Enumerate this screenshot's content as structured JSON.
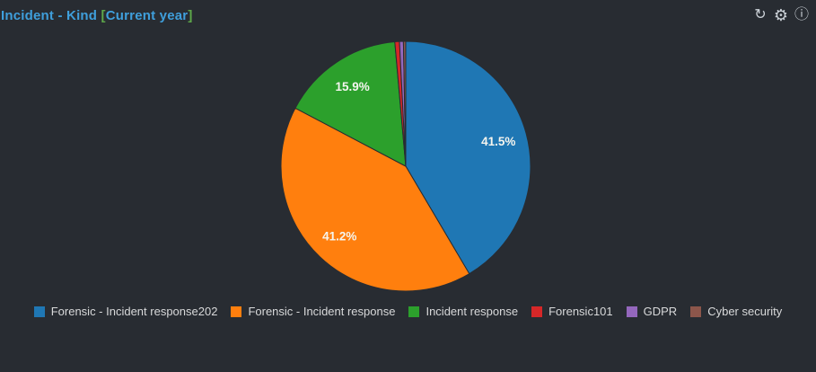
{
  "panel": {
    "title": {
      "prefix": "Incident - Kind ",
      "bracket_open": "[",
      "bracket_text": "Current year",
      "bracket_close": "]",
      "prefix_color": "#3f9fdc",
      "bracket_color": "#5ea84a"
    },
    "toolbar": {
      "refresh_glyph": "↻",
      "settings_glyph": "⚙",
      "info_glyph": "ⓘ"
    },
    "background_color": "#282c32"
  },
  "chart_data": {
    "type": "pie",
    "title": "Incident - Kind [Current year]",
    "legend_position": "bottom",
    "start_angle_deg": 0,
    "clockwise": true,
    "label_min_pct": 5,
    "label_format": "percent",
    "series": [
      {
        "name": "Forensic - Incident response202",
        "value": 41.5,
        "color": "#1f77b4",
        "label": "41.5%"
      },
      {
        "name": "Forensic - Incident response",
        "value": 41.2,
        "color": "#ff7f0e",
        "label": "41.2%"
      },
      {
        "name": "Incident response",
        "value": 15.9,
        "color": "#2ca02c",
        "label": "15.9%"
      },
      {
        "name": "Forensic101",
        "value": 0.6,
        "color": "#d62728",
        "label": ""
      },
      {
        "name": "GDPR",
        "value": 0.5,
        "color": "#9467bd",
        "label": ""
      },
      {
        "name": "Cyber security",
        "value": 0.3,
        "color": "#8c564b",
        "label": ""
      }
    ]
  }
}
